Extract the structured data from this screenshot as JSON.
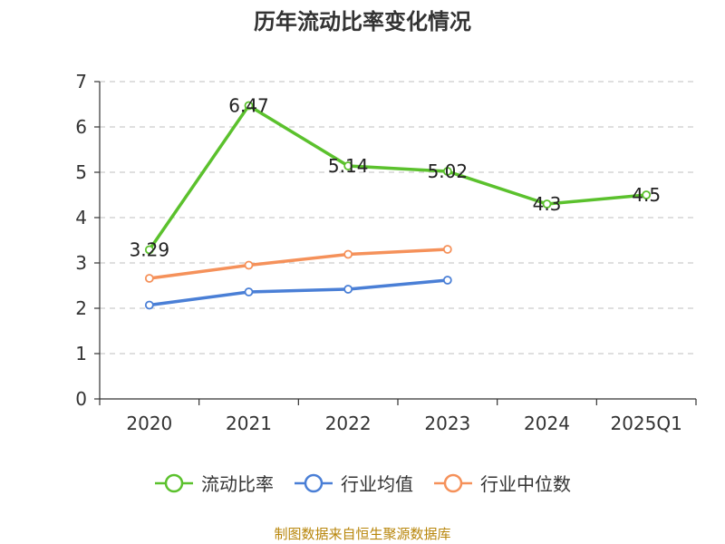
{
  "chart_data": {
    "type": "line",
    "title": "历年流动比率变化情况",
    "categories": [
      "2020",
      "2021",
      "2022",
      "2023",
      "2024",
      "2025Q1"
    ],
    "ylim": [
      0,
      7
    ],
    "yticks": [
      0,
      1,
      2,
      3,
      4,
      5,
      6,
      7
    ],
    "grid": true,
    "legend_position": "bottom",
    "series": [
      {
        "name": "流动比率",
        "color": "#5bc12d",
        "values": [
          3.29,
          6.47,
          5.14,
          5.02,
          4.3,
          4.5
        ],
        "labels": [
          "3.29",
          "6.47",
          "5.14",
          "5.02",
          "4.3",
          "4.5"
        ]
      },
      {
        "name": "行业均值",
        "color": "#4a7fd6",
        "values": [
          2.07,
          2.36,
          2.42,
          2.62,
          null,
          null
        ]
      },
      {
        "name": "行业中位数",
        "color": "#f5915a",
        "values": [
          2.66,
          2.95,
          3.19,
          3.3,
          null,
          null
        ]
      }
    ]
  },
  "source": "制图数据来自恒生聚源数据库"
}
